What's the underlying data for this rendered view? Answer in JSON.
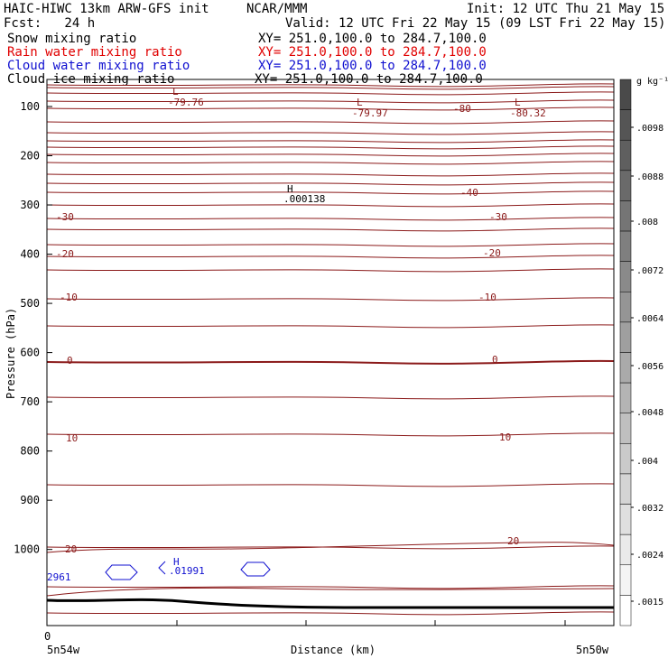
{
  "header": {
    "model": "HAIC-HIWC 13km ARW-GFS init",
    "org": "NCAR/MMM",
    "init": "Init: 12 UTC Thu 21 May 15",
    "fcst": "Fcst:   24 h",
    "valid": "Valid: 12 UTC Fri 22 May 15 (09 LST Fri 22 May 15)",
    "fields": [
      {
        "label": "Snow mixing ratio",
        "xy": "XY= 251.0,100.0 to 284.7,100.0",
        "color": "#000000"
      },
      {
        "label": "Rain water mixing ratio",
        "xy": "XY= 251.0,100.0 to 284.7,100.0",
        "color": "#e00000"
      },
      {
        "label": "Cloud water mixing ratio",
        "xy": "XY= 251.0,100.0 to 284.7,100.0",
        "color": "#1010d0"
      },
      {
        "label": "Cloud ice mixing ratio",
        "xy": "XY= 251.0,100.0 to 284.7,100.0",
        "color": "#000000"
      }
    ]
  },
  "chart_data": {
    "type": "line",
    "title": "",
    "xlabel": "Distance (km)",
    "ylabel": "Pressure (hPa)",
    "x_tick_labels": [
      "5n54w",
      "5n50w"
    ],
    "x_origin_label": "0",
    "yticks": [
      100,
      200,
      300,
      400,
      500,
      600,
      700,
      800,
      900,
      1000
    ],
    "ylim": [
      1055,
      50
    ],
    "temperature_contours": [
      {
        "level": -30,
        "labels": [
          "-30",
          "-30"
        ]
      },
      {
        "level": -20,
        "labels": [
          "-20",
          "-20"
        ]
      },
      {
        "level": -10,
        "labels": [
          "-10",
          "-10"
        ]
      },
      {
        "level": 0,
        "labels": [
          "0",
          "0"
        ]
      },
      {
        "level": 10,
        "labels": [
          "10",
          "10"
        ]
      },
      {
        "level": 20,
        "labels": [
          "20",
          "20"
        ]
      }
    ],
    "extra_labels": [
      "-40",
      "-80"
    ],
    "extrema": [
      {
        "kind": "L",
        "value": "-79.76",
        "color": "#8b0000"
      },
      {
        "kind": "L",
        "value": "-79.97",
        "color": "#8b0000"
      },
      {
        "kind": "L",
        "value": "-80.32",
        "color": "#8b0000"
      },
      {
        "kind": "H",
        "value": ".000138",
        "color": "#000000"
      },
      {
        "kind": "H",
        "value": ".01991",
        "color": "#1010d0"
      },
      {
        "kind": "",
        "value": "2961",
        "color": "#1010d0"
      }
    ],
    "colorbar": {
      "unit": "g kg⁻¹",
      "levels": [
        ".0098",
        ".0088",
        ".008",
        ".0072",
        ".0064",
        ".0056",
        ".0048",
        ".004",
        ".0032",
        ".0024",
        ".0015"
      ]
    },
    "contour_color": "#8b1a1a",
    "grid": false,
    "legend_position": "top-left"
  }
}
